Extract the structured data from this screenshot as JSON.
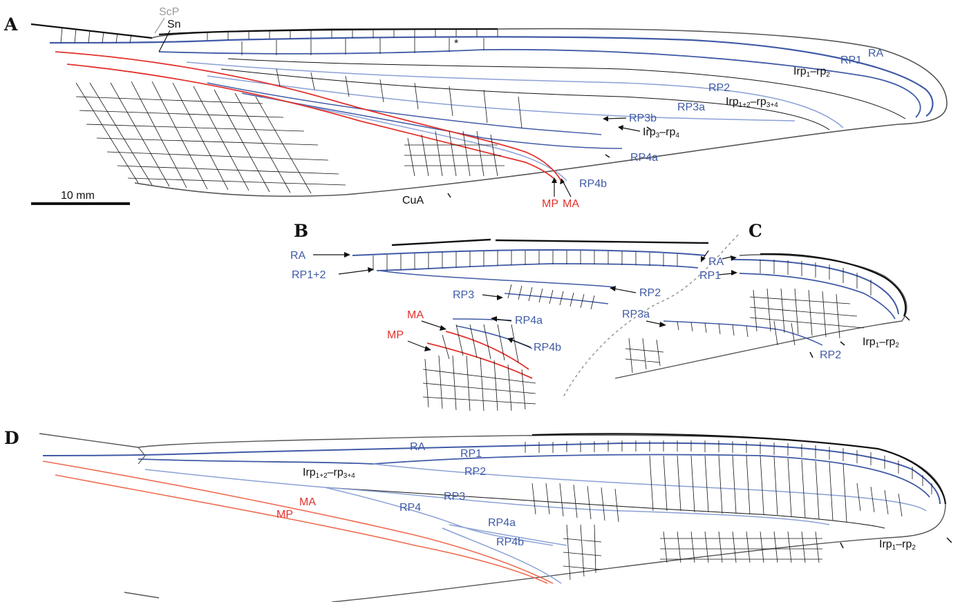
{
  "colors": {
    "blue": "#3f5aa6",
    "light_blue": "#8aa0d4",
    "red": "#e2312c",
    "salmon": "#ef6a50",
    "black": "#111111",
    "grey": "#9a9a9a"
  },
  "panels": {
    "A": {
      "letter": "A",
      "scale_bar": "10 mm",
      "labels": {
        "scp": "ScP",
        "sn": "Sn",
        "asterisk": "*",
        "ra": "RA",
        "rp1": "RP1",
        "rp2": "RP2",
        "rp3a": "RP3a",
        "rp3b": "RP3b",
        "rp4a": "RP4a",
        "rp4b": "RP4b",
        "cua": "CuA",
        "mp": "MP",
        "ma": "MA",
        "irp12_base": "Irp",
        "irp12_sub1": "1",
        "irp12_mid": "–rp",
        "irp12_sub2": "2",
        "irp1234_base": "Irp",
        "irp1234_sub1": "1+2",
        "irp1234_mid": "–rp",
        "irp1234_sub2": "3+4",
        "irp34_base": "Irp",
        "irp34_sub1": "3",
        "irp34_mid": "–rp",
        "irp34_sub2": "4"
      }
    },
    "B": {
      "letter": "B",
      "labels": {
        "ra": "RA",
        "rp12": "RP1+2",
        "rp2": "RP2",
        "rp3": "RP3",
        "rp4a": "RP4a",
        "rp4b": "RP4b",
        "ma": "MA",
        "mp": "MP"
      }
    },
    "C": {
      "letter": "C",
      "labels": {
        "ra": "RA",
        "rp1": "RP1",
        "rp3a": "RP3a",
        "rp2": "RP2",
        "irp12_base": "Irp",
        "irp12_sub1": "1",
        "irp12_mid": "–rp",
        "irp12_sub2": "2"
      }
    },
    "D": {
      "letter": "D",
      "labels": {
        "ra": "RA",
        "rp1": "RP1",
        "rp2": "RP2",
        "rp3": "RP3",
        "rp4": "RP4",
        "rp4a": "RP4a",
        "rp4b": "RP4b",
        "ma": "MA",
        "mp": "MP",
        "irp1234_base": "Irp",
        "irp1234_sub1": "1+2",
        "irp1234_mid": "–rp",
        "irp1234_sub2": "3+4",
        "irp12_base": "Irp",
        "irp12_sub1": "1",
        "irp12_mid": "–rp",
        "irp12_sub2": "2"
      }
    }
  }
}
